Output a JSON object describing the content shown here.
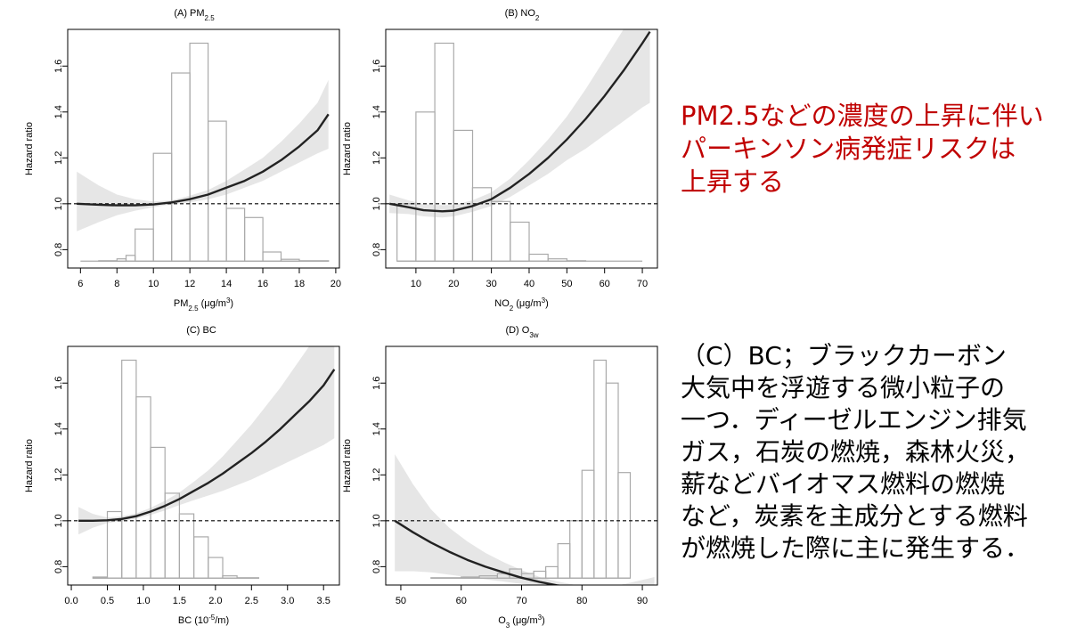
{
  "panels": [
    {
      "title": {
        "pre": "(A) PM",
        "sub": "2.5",
        "post": ""
      },
      "xlabel": {
        "pre": "PM",
        "sub": "2.5",
        "mid": " (μg/m",
        "sup": "3",
        "post": ")"
      },
      "ylabel": "Hazard ratio"
    },
    {
      "title": {
        "pre": "(B) NO",
        "sub": "2",
        "post": ""
      },
      "xlabel": {
        "pre": "NO",
        "sub": "2",
        "mid": " (μg/m",
        "sup": "3",
        "post": ")"
      },
      "ylabel": "Hazard ratio"
    },
    {
      "title": {
        "pre": "(C) BC",
        "sub": "",
        "post": ""
      },
      "xlabel": {
        "pre": "BC (10",
        "sub": "",
        "mid": "",
        "sup": "-5",
        "post": "/m)"
      },
      "ylabel": "Hazard ratio"
    },
    {
      "title": {
        "pre": "(D) O",
        "sub": "3w",
        "post": ""
      },
      "xlabel": {
        "pre": "O",
        "sub": "3",
        "mid": " (μg/m",
        "sup": "3",
        "post": ")"
      },
      "ylabel": "Hazard ratio"
    }
  ],
  "notes": {
    "red": [
      "PM2.5などの濃度の上昇に伴い",
      "パーキンソン病発症リスクは",
      "上昇する"
    ],
    "black": [
      "（C）BC；ブラックカーボン",
      "大気中を浮遊する微小粒子の",
      "一つ．ディーゼルエンジン排気",
      "ガス，石炭の燃焼，森林火災，",
      "薪などバイオマス燃料の燃焼",
      "など，炭素を主成分とする燃料",
      "が燃焼した際に主に発生する．"
    ]
  },
  "colors": {
    "curve": "#222222",
    "band": "#e6e6e6",
    "histogram_edge": "#aaaaaa",
    "reference_line": "#000000",
    "note_red": "#c00000",
    "note_black": "#000000"
  },
  "chart_data": [
    {
      "type": "line",
      "xlim": [
        5.3,
        20.2
      ],
      "ylim": [
        0.72,
        1.76
      ],
      "xticks": [
        6,
        8,
        10,
        12,
        14,
        16,
        18,
        20
      ],
      "yticks": [
        0.8,
        1.0,
        1.2,
        1.4,
        1.6
      ],
      "reference_line": 1.0,
      "x": [
        5.8,
        7,
        8,
        9,
        10,
        11,
        12,
        13,
        14,
        15,
        16,
        17,
        18,
        19,
        19.6
      ],
      "hazard_ratio": [
        1.0,
        0.996,
        0.993,
        0.993,
        0.997,
        1.006,
        1.02,
        1.04,
        1.07,
        1.1,
        1.14,
        1.19,
        1.25,
        1.32,
        1.39
      ],
      "ci_lower": [
        0.88,
        0.92,
        0.95,
        0.97,
        0.985,
        0.998,
        1.006,
        1.02,
        1.04,
        1.07,
        1.1,
        1.14,
        1.18,
        1.22,
        1.24
      ],
      "ci_upper": [
        1.14,
        1.08,
        1.04,
        1.02,
        1.01,
        1.015,
        1.035,
        1.06,
        1.1,
        1.15,
        1.2,
        1.27,
        1.35,
        1.44,
        1.54
      ],
      "histogram": {
        "edges": [
          6,
          7,
          8,
          8.5,
          9,
          10,
          11,
          12,
          13,
          14,
          15,
          16,
          17,
          18,
          19.6
        ],
        "tops": [
          0.75,
          0.752,
          0.76,
          0.775,
          0.89,
          1.22,
          1.57,
          1.7,
          1.36,
          0.98,
          0.94,
          0.79,
          0.758,
          0.752
        ]
      }
    },
    {
      "type": "line",
      "xlim": [
        2,
        74
      ],
      "ylim": [
        0.72,
        1.76
      ],
      "xticks": [
        10,
        20,
        30,
        40,
        50,
        60,
        70
      ],
      "yticks": [
        0.8,
        1.0,
        1.2,
        1.4,
        1.6
      ],
      "reference_line": 1.0,
      "x": [
        3,
        8,
        12,
        17,
        20,
        25,
        30,
        35,
        40,
        45,
        50,
        55,
        60,
        65,
        70,
        72
      ],
      "hazard_ratio": [
        1.0,
        0.985,
        0.972,
        0.967,
        0.97,
        0.99,
        1.02,
        1.07,
        1.13,
        1.2,
        1.28,
        1.37,
        1.47,
        1.58,
        1.7,
        1.75
      ],
      "ci_lower": [
        0.96,
        0.955,
        0.945,
        0.94,
        0.945,
        0.965,
        0.99,
        1.03,
        1.08,
        1.13,
        1.19,
        1.24,
        1.3,
        1.36,
        1.42,
        1.44
      ],
      "ci_upper": [
        1.04,
        1.015,
        0.999,
        0.994,
        0.995,
        1.015,
        1.05,
        1.11,
        1.19,
        1.28,
        1.38,
        1.5,
        1.63,
        1.76,
        1.76,
        1.76
      ],
      "histogram": {
        "edges": [
          5,
          10,
          15,
          20,
          25,
          30,
          35,
          40,
          45,
          50,
          55,
          60,
          65,
          70
        ],
        "tops": [
          1.0,
          1.4,
          1.7,
          1.32,
          1.07,
          1.01,
          0.92,
          0.78,
          0.76,
          0.752,
          0.75,
          0.75,
          0.75
        ]
      }
    },
    {
      "type": "line",
      "xlim": [
        -0.05,
        3.72
      ],
      "ylim": [
        0.72,
        1.76
      ],
      "xticks": [
        0.0,
        0.5,
        1.0,
        1.5,
        2.0,
        2.5,
        3.0,
        3.5
      ],
      "yticks": [
        0.8,
        1.0,
        1.2,
        1.4,
        1.6
      ],
      "reference_line": 1.0,
      "x": [
        0.1,
        0.3,
        0.5,
        0.7,
        0.9,
        1.1,
        1.3,
        1.5,
        1.7,
        1.9,
        2.1,
        2.3,
        2.5,
        2.7,
        2.9,
        3.1,
        3.3,
        3.5,
        3.65
      ],
      "hazard_ratio": [
        1.0,
        1.0,
        1.002,
        1.008,
        1.02,
        1.04,
        1.065,
        1.095,
        1.13,
        1.165,
        1.205,
        1.25,
        1.295,
        1.345,
        1.4,
        1.46,
        1.52,
        1.59,
        1.66
      ],
      "ci_lower": [
        0.94,
        0.97,
        0.99,
        0.998,
        1.01,
        1.025,
        1.045,
        1.068,
        1.09,
        1.11,
        1.13,
        1.155,
        1.18,
        1.21,
        1.24,
        1.27,
        1.3,
        1.33,
        1.36
      ],
      "ci_upper": [
        1.06,
        1.03,
        1.014,
        1.02,
        1.032,
        1.056,
        1.087,
        1.123,
        1.17,
        1.22,
        1.28,
        1.35,
        1.42,
        1.5,
        1.58,
        1.67,
        1.76,
        1.76,
        1.76
      ],
      "histogram": {
        "edges": [
          0.3,
          0.5,
          0.7,
          0.9,
          1.1,
          1.3,
          1.5,
          1.7,
          1.9,
          2.1,
          2.3,
          2.6
        ],
        "tops": [
          0.755,
          1.04,
          1.7,
          1.54,
          1.32,
          1.12,
          1.03,
          0.93,
          0.84,
          0.76,
          0.752
        ]
      }
    },
    {
      "type": "line",
      "xlim": [
        47.5,
        92.5
      ],
      "ylim": [
        0.72,
        1.76
      ],
      "xticks": [
        50,
        60,
        70,
        80,
        90
      ],
      "yticks": [
        0.8,
        1.0,
        1.2,
        1.4,
        1.6
      ],
      "reference_line": 1.0,
      "x": [
        49,
        52,
        55,
        58,
        61,
        64,
        67,
        70,
        73,
        76,
        79,
        82,
        85,
        88,
        91,
        92
      ],
      "hazard_ratio": [
        1.0,
        0.95,
        0.905,
        0.865,
        0.83,
        0.8,
        0.775,
        0.752,
        0.733,
        0.718,
        0.708,
        0.703,
        0.703,
        0.707,
        0.713,
        0.715
      ],
      "ci_lower": [
        0.78,
        0.78,
        0.775,
        0.765,
        0.755,
        0.745,
        0.735,
        0.725,
        0.715,
        0.705,
        0.698,
        0.694,
        0.693,
        0.69,
        0.688,
        0.688
      ],
      "ci_upper": [
        1.29,
        1.16,
        1.05,
        0.97,
        0.91,
        0.86,
        0.82,
        0.785,
        0.755,
        0.735,
        0.72,
        0.713,
        0.713,
        0.73,
        0.748,
        0.755
      ],
      "histogram": {
        "edges": [
          55,
          60,
          63,
          66,
          68,
          70,
          72,
          74,
          76,
          78,
          80,
          82,
          84,
          86,
          88
        ],
        "tops": [
          0.752,
          0.755,
          0.76,
          0.77,
          0.79,
          0.77,
          0.78,
          0.8,
          0.9,
          1.0,
          1.22,
          1.7,
          1.6,
          1.21,
          0.78
        ]
      }
    }
  ]
}
